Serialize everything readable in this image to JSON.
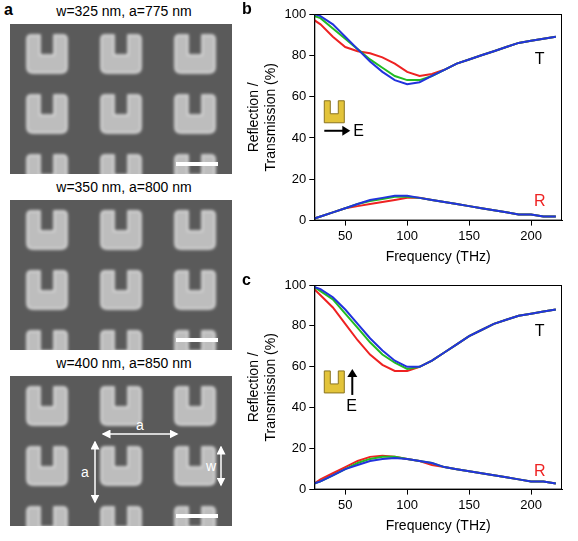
{
  "images_panel": {
    "panel_label": "a",
    "images": [
      {
        "caption": "w=325 nm, a=775 nm"
      },
      {
        "caption": "w=350 nm, a=800 nm"
      },
      {
        "caption": "w=400 nm, a=850 nm",
        "dimension_labels": [
          "a",
          "a",
          "w"
        ]
      }
    ]
  },
  "chart_data": [
    {
      "panel_label": "b",
      "type": "line",
      "x_label": "Frequency (THz)",
      "y_label": "Reflection / Transmission (%)",
      "x": [
        25,
        30,
        40,
        50,
        60,
        70,
        80,
        90,
        100,
        110,
        120,
        130,
        140,
        150,
        160,
        170,
        180,
        190,
        200,
        210,
        220
      ],
      "xlim": [
        25,
        225
      ],
      "xticks": [
        50,
        100,
        150,
        200
      ],
      "ylim": [
        0,
        100
      ],
      "yticks": [
        0,
        20,
        40,
        60,
        80,
        100
      ],
      "grid": false,
      "series": [
        {
          "color": "#2233dd",
          "values": [
            100,
            99,
            95,
            89,
            83,
            77,
            72,
            68,
            66,
            67,
            70,
            73,
            76,
            78,
            80,
            82,
            84,
            86,
            87,
            88,
            89
          ]
        },
        {
          "color": "#22bb22",
          "values": [
            99,
            98,
            93,
            88,
            83,
            78,
            74,
            70,
            68,
            68,
            70,
            73,
            76,
            78,
            80,
            82,
            84,
            86,
            87,
            88,
            89
          ]
        },
        {
          "color": "#ee2222",
          "values": [
            97,
            95,
            89,
            84,
            82,
            81,
            79,
            76,
            72,
            70,
            71,
            73,
            76,
            78,
            80,
            82,
            84,
            86,
            87,
            88,
            89
          ]
        },
        {
          "color": "#2233dd",
          "values": [
            1,
            2,
            4,
            6,
            8,
            10,
            11,
            12,
            12,
            11,
            10,
            9,
            8,
            7,
            6,
            5,
            4,
            3,
            3,
            2,
            2
          ]
        },
        {
          "color": "#22bb22",
          "values": [
            1,
            2,
            4,
            6,
            8,
            9.5,
            10.5,
            11.5,
            11.5,
            11,
            10,
            9,
            8,
            7,
            6,
            5,
            4,
            3,
            3,
            2,
            2
          ]
        },
        {
          "color": "#ee2222",
          "values": [
            1,
            2,
            4,
            6,
            7,
            8,
            9,
            10,
            11,
            11,
            10,
            9,
            8,
            7,
            6,
            5,
            4,
            3,
            3,
            2,
            2
          ]
        }
      ],
      "annotations": [
        {
          "text": "T",
          "x": 207,
          "y": 78,
          "color": "#000000"
        },
        {
          "text": "R",
          "x": 207,
          "y": 9,
          "color": "#ee2222"
        }
      ],
      "inset": {
        "label": "E",
        "field_direction": "horizontal"
      }
    },
    {
      "panel_label": "c",
      "type": "line",
      "x_label": "Frequency (THz)",
      "y_label": "Reflection / Transmission (%)",
      "x": [
        25,
        30,
        40,
        50,
        60,
        70,
        80,
        90,
        100,
        110,
        120,
        130,
        140,
        150,
        160,
        170,
        180,
        190,
        200,
        210,
        220
      ],
      "xlim": [
        25,
        225
      ],
      "xticks": [
        50,
        100,
        150,
        200
      ],
      "ylim": [
        0,
        100
      ],
      "yticks": [
        0,
        20,
        40,
        60,
        80,
        100
      ],
      "grid": false,
      "series": [
        {
          "color": "#2233dd",
          "values": [
            99,
            98,
            94,
            88,
            81,
            74,
            68,
            63,
            60,
            60,
            63,
            67,
            71,
            75,
            78,
            81,
            83,
            85,
            86,
            87,
            88
          ]
        },
        {
          "color": "#22bb22",
          "values": [
            99,
            97,
            93,
            86,
            79,
            72,
            66,
            62,
            59,
            60,
            63,
            67,
            71,
            75,
            78,
            81,
            83,
            85,
            86,
            87,
            88
          ]
        },
        {
          "color": "#ee2222",
          "values": [
            98,
            95,
            89,
            81,
            73,
            66,
            61,
            58,
            58,
            60,
            63,
            67,
            71,
            75,
            78,
            81,
            83,
            85,
            86,
            87,
            88
          ]
        },
        {
          "color": "#2233dd",
          "values": [
            3,
            4,
            7,
            10,
            12,
            14,
            15,
            15.5,
            15,
            14,
            13,
            11,
            10,
            9,
            8,
            7,
            6,
            5,
            4,
            4,
            3
          ]
        },
        {
          "color": "#22bb22",
          "values": [
            3,
            4,
            7,
            10,
            13,
            15,
            16,
            16,
            15,
            14,
            13,
            11,
            10,
            9,
            8,
            7,
            6,
            5,
            4,
            4,
            3
          ]
        },
        {
          "color": "#ee2222",
          "values": [
            3,
            5,
            8,
            11,
            14,
            16,
            16.5,
            16,
            15,
            14,
            12,
            11,
            10,
            9,
            8,
            7,
            6,
            5,
            4,
            4,
            3
          ]
        }
      ],
      "annotations": [
        {
          "text": "T",
          "x": 207,
          "y": 77,
          "color": "#000000"
        },
        {
          "text": "R",
          "x": 207,
          "y": 9,
          "color": "#ee2222"
        }
      ],
      "inset": {
        "label": "E",
        "field_direction": "vertical"
      }
    }
  ]
}
